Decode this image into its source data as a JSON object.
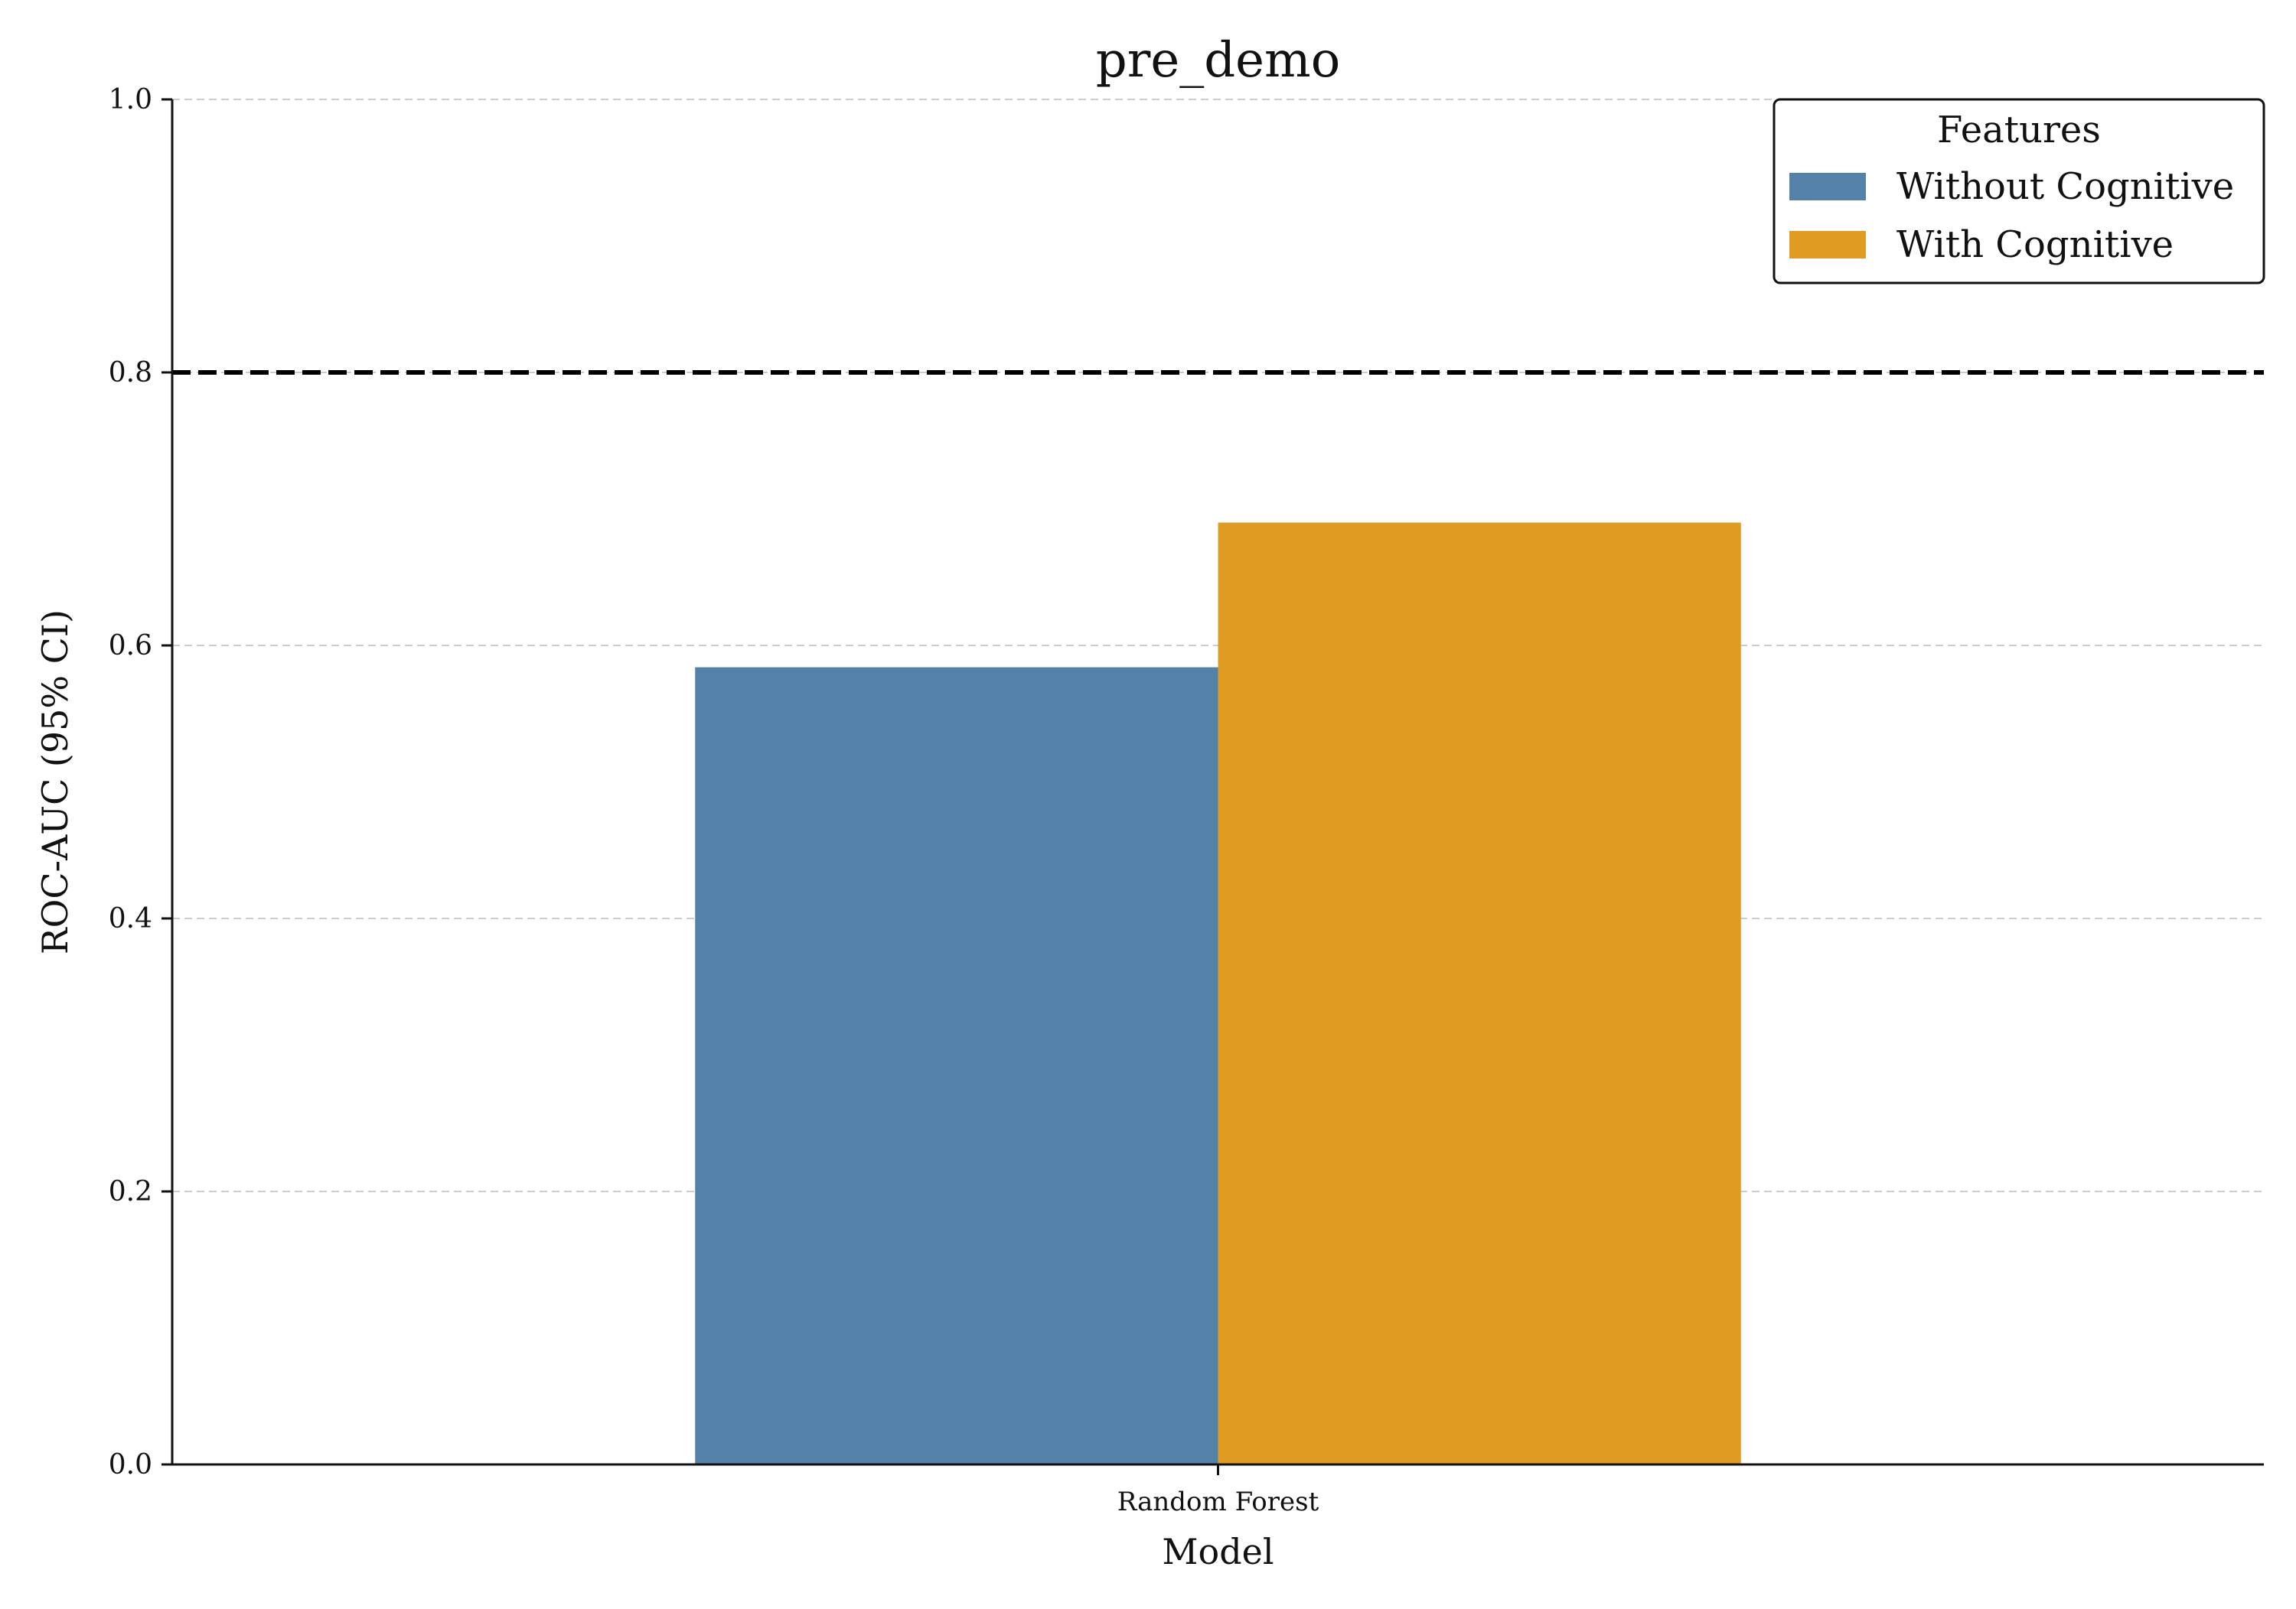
{
  "chart_data": {
    "type": "bar",
    "title": "pre_demo",
    "xlabel": "Model",
    "ylabel": "ROC-AUC (95% CI)",
    "categories": [
      "Random Forest"
    ],
    "series": [
      {
        "name": "Without Cognitive",
        "color": "#5381a7",
        "values": [
          0.584
        ]
      },
      {
        "name": "With Cognitive",
        "color": "#df9b22",
        "values": [
          0.69
        ]
      }
    ],
    "ylim": [
      0.0,
      1.0
    ],
    "yticks": [
      "0.0",
      "0.2",
      "0.4",
      "0.6",
      "0.8",
      "1.0"
    ],
    "reference_line": {
      "y": 0.8,
      "style": "dashed",
      "color": "#000000"
    },
    "grid": {
      "y": true,
      "x": false,
      "style": "dashed",
      "color": "#cccccc"
    },
    "legend": {
      "title": "Features",
      "placement": "top-right"
    }
  }
}
